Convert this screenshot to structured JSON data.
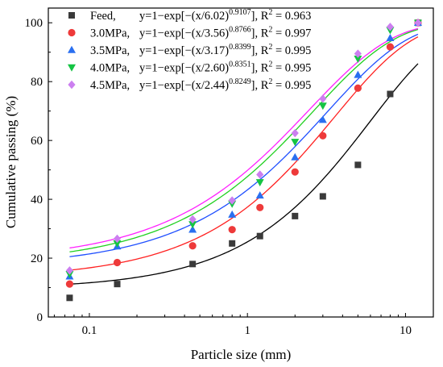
{
  "chart_data": {
    "type": "scatter",
    "xlabel": "Particle size (mm)",
    "ylabel": "Cumulative passing (%)",
    "xscale": "log",
    "xlim": [
      0.055,
      15
    ],
    "ylim": [
      0,
      105
    ],
    "xticks": [
      0.1,
      1,
      10
    ],
    "xtick_labels": [
      "0.1",
      "1",
      "10"
    ],
    "yticks": [
      0,
      20,
      40,
      60,
      80,
      100
    ],
    "ytick_labels": [
      "0",
      "20",
      "40",
      "60",
      "80",
      "100"
    ],
    "grid": false,
    "legend_position": "top-left",
    "x": [
      0.075,
      0.15,
      0.45,
      0.8,
      1.2,
      2.0,
      3.0,
      5.0,
      8.0,
      12.0
    ],
    "series": [
      {
        "label": "Feed,",
        "equation": "y=1−exp[−(x/6.02)",
        "exponent": "0.9107",
        "equation_tail": "], R",
        "r2_value": " = 0.963",
        "marker": "square",
        "color": "#3a3a3a",
        "values": [
          6.5,
          11.2,
          18.0,
          25.0,
          27.5,
          34.3,
          41.0,
          51.7,
          75.8,
          100
        ]
      },
      {
        "label": "3.0MPa,",
        "equation": "y=1−exp[−(x/3.56)",
        "exponent": "0.8766",
        "equation_tail": "], R",
        "r2_value": " = 0.997",
        "marker": "circle",
        "color": "#ee3a3a",
        "values": [
          11.2,
          18.5,
          24.2,
          29.7,
          37.2,
          49.3,
          61.6,
          77.8,
          91.8,
          100
        ]
      },
      {
        "label": "3.5MPa,",
        "equation": "y=1−exp[−(x/3.17)",
        "exponent": "0.8399",
        "equation_tail": "], R",
        "r2_value": " = 0.995",
        "marker": "triangle-up",
        "color": "#2a6ff0",
        "values": [
          13.8,
          24.0,
          29.7,
          34.8,
          41.3,
          54.3,
          67.0,
          82.3,
          94.8,
          100
        ]
      },
      {
        "label": "4.0MPa,",
        "equation": "y=1−exp[−(x/2.60)",
        "exponent": "0.8351",
        "equation_tail": "], R",
        "r2_value": " = 0.995",
        "marker": "triangle-down",
        "color": "#14c443",
        "values": [
          14.6,
          25.0,
          31.5,
          38.5,
          45.8,
          59.5,
          71.8,
          87.8,
          97.5,
          100
        ]
      },
      {
        "label": "4.5MPa,",
        "equation": "y=1−exp[−(x/2.44)",
        "exponent": "0.8249",
        "equation_tail": "], R",
        "r2_value": " = 0.995",
        "marker": "diamond",
        "color": "#cc7ff0",
        "values": [
          15.8,
          26.6,
          33.2,
          39.6,
          48.4,
          62.5,
          74.2,
          89.5,
          98.6,
          100
        ]
      }
    ],
    "fit_curves": [
      {
        "color": "#000000",
        "d0": 9.5,
        "xc": 6.02,
        "n": 0.9107
      },
      {
        "color": "#ff2020",
        "d0": 13.0,
        "xc": 3.56,
        "n": 0.8766
      },
      {
        "color": "#1f4fff",
        "d0": 17.0,
        "xc": 3.17,
        "n": 0.8399
      },
      {
        "color": "#20d020",
        "d0": 18.0,
        "xc": 2.6,
        "n": 0.8351
      },
      {
        "color": "#ff20ff",
        "d0": 19.0,
        "xc": 2.44,
        "n": 0.8249
      }
    ]
  }
}
